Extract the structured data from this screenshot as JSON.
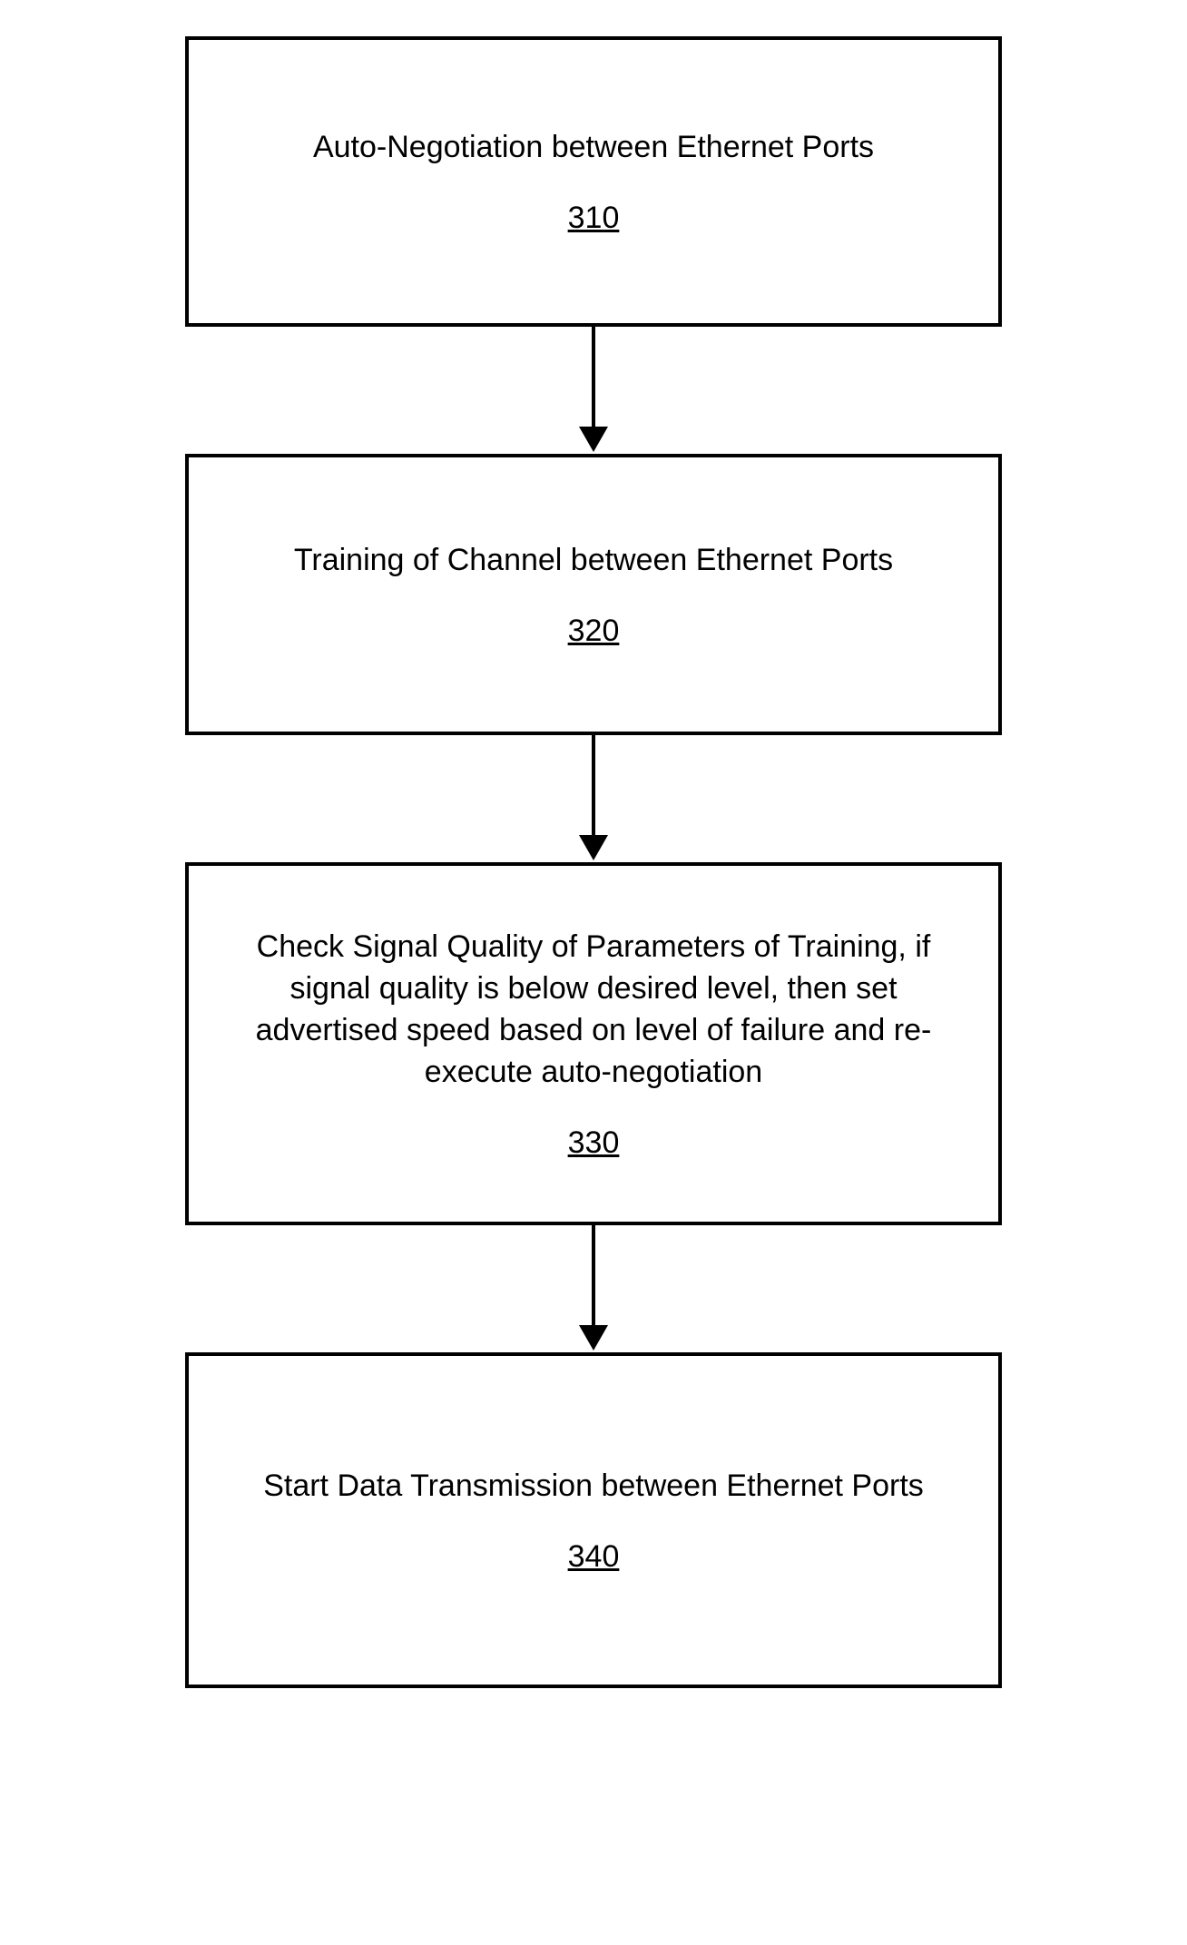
{
  "flowchart": {
    "type": "flowchart",
    "orientation": "vertical",
    "background_color": "#ffffff",
    "box_border_color": "#000000",
    "box_border_width": 4,
    "arrow_color": "#000000",
    "arrow_line_width": 4,
    "arrow_head_size": 28,
    "font_family": "Arial",
    "text_fontsize": 34,
    "text_color": "#000000",
    "number_underlined": true,
    "nodes": [
      {
        "id": "step-310",
        "text": "Auto-Negotiation between Ethernet Ports",
        "number": "310",
        "min_height": 320
      },
      {
        "id": "step-320",
        "text": "Training of Channel between Ethernet Ports",
        "number": "320",
        "min_height": 310
      },
      {
        "id": "step-330",
        "text": "Check Signal Quality of Parameters of Training, if signal quality is below desired level, then set advertised speed based on level of failure and re-execute auto-negotiation",
        "number": "330",
        "min_height": 400
      },
      {
        "id": "step-340",
        "text": "Start Data Transmission between Ethernet Ports",
        "number": "340",
        "min_height": 370
      }
    ],
    "edges": [
      {
        "from": "step-310",
        "to": "step-320"
      },
      {
        "from": "step-320",
        "to": "step-330"
      },
      {
        "from": "step-330",
        "to": "step-340"
      }
    ]
  }
}
